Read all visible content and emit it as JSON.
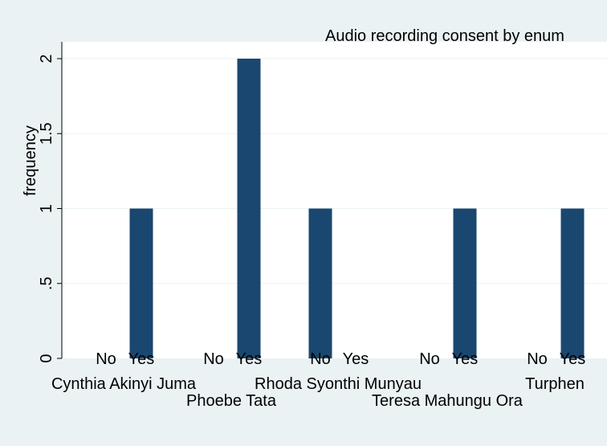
{
  "chart_data": {
    "type": "bar",
    "title": "Audio recording consent by enum",
    "ylabel": "frequency",
    "xlabel": "",
    "ylim": [
      0,
      2.1
    ],
    "yticks": [
      {
        "value": 0,
        "label": "0"
      },
      {
        "value": 0.5,
        "label": ".5"
      },
      {
        "value": 1,
        "label": "1"
      },
      {
        "value": 1.5,
        "label": "1.5"
      },
      {
        "value": 2,
        "label": "2"
      }
    ],
    "grid": true,
    "bar_color": "#1a476f",
    "groups": [
      {
        "name": "Cynthia Akinyi Juma",
        "bars": [
          {
            "label": "No",
            "value": 0
          },
          {
            "label": "Yes",
            "value": 1
          }
        ]
      },
      {
        "name": "Phoebe Tata",
        "bars": [
          {
            "label": "No",
            "value": 0
          },
          {
            "label": "Yes",
            "value": 2
          }
        ]
      },
      {
        "name": "Rhoda Syonthi Munyau",
        "bars": [
          {
            "label": "No",
            "value": 1
          },
          {
            "label": "Yes",
            "value": 0
          }
        ]
      },
      {
        "name": "Teresa Mahungu Ora",
        "bars": [
          {
            "label": "No",
            "value": 0
          },
          {
            "label": "Yes",
            "value": 1
          }
        ]
      },
      {
        "name": "Turphen",
        "bars": [
          {
            "label": "No",
            "value": 0
          },
          {
            "label": "Yes",
            "value": 1
          }
        ]
      }
    ]
  }
}
